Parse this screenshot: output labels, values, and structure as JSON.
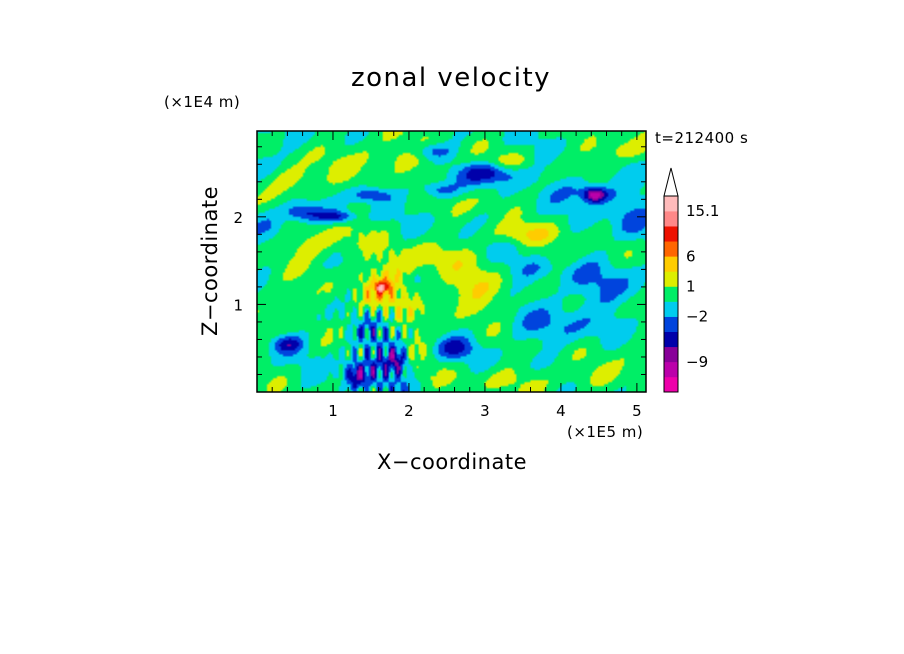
{
  "chart_data": {
    "type": "heatmap",
    "title": "zonal velocity",
    "xlabel": "X−coordinate",
    "ylabel": "Z−coordinate",
    "x_scale_note": "(×1E5 m)",
    "y_scale_note": "(×1E4 m)",
    "time_label": "t=212400 s",
    "xlim": [
      0.0,
      5.12
    ],
    "ylim": [
      0.0,
      2.98
    ],
    "x_ticks": [
      1,
      2,
      3,
      4,
      5
    ],
    "y_ticks": [
      1,
      2
    ],
    "colorbar": {
      "labels": [
        {
          "value": "15.1",
          "level": 12
        },
        {
          "value": "6",
          "level": 9
        },
        {
          "value": "1",
          "level": 7
        },
        {
          "value": "−2",
          "level": 5
        },
        {
          "value": "−9",
          "level": 2
        }
      ],
      "colors": [
        "#ee00aa",
        "#bb00aa",
        "#880099",
        "#0000aa",
        "#0044dd",
        "#00ccee",
        "#00ee66",
        "#ddee00",
        "#ffcc00",
        "#ff6600",
        "#ee1100",
        "#ff8888",
        "#ffbbbb"
      ],
      "extend_max": true
    },
    "blobs": [
      {
        "cx": 1.62,
        "cy": 1.15,
        "rx": 0.35,
        "ry": 0.28,
        "a": 4.5
      },
      {
        "cx": 1.65,
        "cy": 1.2,
        "rx": 0.08,
        "ry": 0.06,
        "a": 8
      },
      {
        "cx": 0.5,
        "cy": 2.4,
        "rx": 0.35,
        "ry": 0.18,
        "a": 3.5
      },
      {
        "cx": 0.8,
        "cy": 1.7,
        "rx": 0.6,
        "ry": 0.2,
        "a": 3
      },
      {
        "cx": 1.8,
        "cy": 2.7,
        "rx": 0.8,
        "ry": 0.2,
        "a": 3
      },
      {
        "cx": 2.2,
        "cy": 1.5,
        "rx": 0.5,
        "ry": 0.2,
        "a": 3
      },
      {
        "cx": 2.8,
        "cy": 1.2,
        "rx": 0.4,
        "ry": 0.2,
        "a": 3
      },
      {
        "cx": 3.5,
        "cy": 1.8,
        "rx": 0.5,
        "ry": 0.12,
        "a": 3.5
      },
      {
        "cx": 4.2,
        "cy": 2.3,
        "rx": 0.5,
        "ry": 0.15,
        "a": 3
      },
      {
        "cx": 4.7,
        "cy": 2.75,
        "rx": 0.4,
        "ry": 0.15,
        "a": 3
      },
      {
        "cx": 3.3,
        "cy": 2.6,
        "rx": 0.3,
        "ry": 0.12,
        "a": 2.5
      },
      {
        "cx": 4.0,
        "cy": 1.55,
        "rx": 0.3,
        "ry": 0.12,
        "a": 2
      },
      {
        "cx": 3.0,
        "cy": 1.0,
        "rx": 0.6,
        "ry": 0.25,
        "a": 1.5
      },
      {
        "cx": 2.0,
        "cy": 0.6,
        "rx": 0.3,
        "ry": 0.2,
        "a": 2.5
      },
      {
        "cx": 0.3,
        "cy": 1.0,
        "rx": 0.25,
        "ry": 0.25,
        "a": 2.5
      },
      {
        "cx": 0.6,
        "cy": 2.05,
        "rx": 0.25,
        "ry": 0.1,
        "a": -6
      },
      {
        "cx": 1.05,
        "cy": 2.0,
        "rx": 0.25,
        "ry": 0.07,
        "a": -6
      },
      {
        "cx": 1.5,
        "cy": 2.25,
        "rx": 0.25,
        "ry": 0.08,
        "a": -5
      },
      {
        "cx": 2.4,
        "cy": 2.3,
        "rx": 0.25,
        "ry": 0.1,
        "a": -5
      },
      {
        "cx": 3.1,
        "cy": 2.5,
        "rx": 0.4,
        "ry": 0.12,
        "a": -7
      },
      {
        "cx": 2.3,
        "cy": 2.75,
        "rx": 0.3,
        "ry": 0.1,
        "a": -5
      },
      {
        "cx": 4.3,
        "cy": 2.3,
        "rx": 0.5,
        "ry": 0.15,
        "a": -6
      },
      {
        "cx": 4.45,
        "cy": 2.25,
        "rx": 0.15,
        "ry": 0.08,
        "a": -10
      },
      {
        "cx": 2.6,
        "cy": 0.5,
        "rx": 0.25,
        "ry": 0.12,
        "a": -5
      },
      {
        "cx": 0.4,
        "cy": 0.55,
        "rx": 0.2,
        "ry": 0.1,
        "a": -6
      },
      {
        "cx": 0.2,
        "cy": 1.9,
        "rx": 0.25,
        "ry": 0.2,
        "a": -3
      },
      {
        "cx": 3.9,
        "cy": 0.75,
        "rx": 0.7,
        "ry": 0.2,
        "a": -2.5
      },
      {
        "cx": 4.5,
        "cy": 1.2,
        "rx": 0.7,
        "ry": 0.3,
        "a": -2.5
      },
      {
        "cx": 3.6,
        "cy": 1.4,
        "rx": 0.3,
        "ry": 0.15,
        "a": -2.5
      },
      {
        "cx": 4.9,
        "cy": 2.0,
        "rx": 0.3,
        "ry": 0.25,
        "a": -3
      },
      {
        "cx": 1.6,
        "cy": 0.4,
        "rx": 0.35,
        "ry": 0.4,
        "a": -4
      },
      {
        "cx": 1.3,
        "cy": 0.2,
        "rx": 0.15,
        "ry": 0.15,
        "a": -6
      },
      {
        "cx": 1.85,
        "cy": 0.35,
        "rx": 0.12,
        "ry": 0.15,
        "a": -6
      },
      {
        "cx": 2.8,
        "cy": 2.2,
        "rx": 0.4,
        "ry": 0.15,
        "a": 1.5
      },
      {
        "cx": 0.0,
        "cy": 2.6,
        "rx": 0.25,
        "ry": 0.15,
        "a": -2.5
      },
      {
        "cx": 3.8,
        "cy": 0.15,
        "rx": 1.1,
        "ry": 0.15,
        "a": 2
      },
      {
        "cx": 5.0,
        "cy": 0.5,
        "rx": 0.3,
        "ry": 0.2,
        "a": 2
      }
    ]
  }
}
